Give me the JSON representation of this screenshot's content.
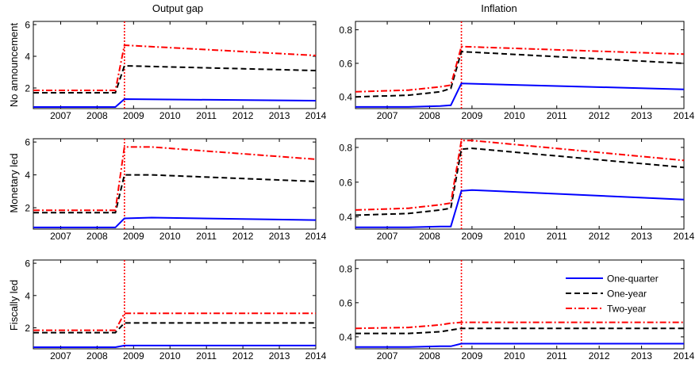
{
  "figure": {
    "column_titles": [
      "Output gap",
      "Inflation"
    ],
    "row_labels": [
      "No announcement",
      "Monetary led",
      "Fiscally led"
    ]
  },
  "legend": {
    "entries": [
      "One-quarter",
      "One-year",
      "Two-year"
    ]
  },
  "colors": {
    "one_quarter": "#0000ff",
    "one_year": "#000000",
    "two_year": "#ff0000",
    "event_line": "#ff0000"
  },
  "chart_data": [
    {
      "type": "line",
      "row": "No announcement",
      "column": "Output gap",
      "x": [
        2006.25,
        2008.5,
        2008.75,
        2014.0
      ],
      "xlim": [
        2006.25,
        2014.0
      ],
      "xticks": [
        2007,
        2008,
        2009,
        2010,
        2011,
        2012,
        2013,
        2014
      ],
      "ylim": [
        0.7,
        6.2
      ],
      "yticks": [
        2,
        4,
        6
      ],
      "event_x": 2008.75,
      "series": [
        {
          "name": "One-quarter",
          "values": [
            0.8,
            0.8,
            1.3,
            1.2
          ]
        },
        {
          "name": "One-year",
          "values": [
            1.7,
            1.7,
            3.4,
            3.1
          ]
        },
        {
          "name": "Two-year",
          "values": [
            1.85,
            1.85,
            4.7,
            4.05
          ]
        }
      ]
    },
    {
      "type": "line",
      "row": "No announcement",
      "column": "Inflation",
      "x": [
        2006.25,
        2007.5,
        2008.25,
        2008.5,
        2008.75,
        2014.0
      ],
      "xlim": [
        2006.25,
        2014.0
      ],
      "xticks": [
        2007,
        2008,
        2009,
        2010,
        2011,
        2012,
        2013,
        2014
      ],
      "ylim": [
        0.33,
        0.85
      ],
      "yticks": [
        0.4,
        0.6,
        0.8
      ],
      "event_x": 2008.75,
      "series": [
        {
          "name": "One-quarter",
          "values": [
            0.34,
            0.34,
            0.345,
            0.35,
            0.48,
            0.445
          ]
        },
        {
          "name": "One-year",
          "values": [
            0.4,
            0.41,
            0.43,
            0.45,
            0.67,
            0.6
          ]
        },
        {
          "name": "Two-year",
          "values": [
            0.43,
            0.44,
            0.46,
            0.47,
            0.7,
            0.655
          ]
        }
      ]
    },
    {
      "type": "line",
      "row": "Monetary led",
      "column": "Output gap",
      "x": [
        2006.25,
        2008.5,
        2008.75,
        2009.5,
        2014.0
      ],
      "xlim": [
        2006.25,
        2014.0
      ],
      "xticks": [
        2007,
        2008,
        2009,
        2010,
        2011,
        2012,
        2013,
        2014
      ],
      "ylim": [
        0.7,
        6.2
      ],
      "yticks": [
        2,
        4,
        6
      ],
      "event_x": 2008.75,
      "series": [
        {
          "name": "One-quarter",
          "values": [
            0.8,
            0.8,
            1.35,
            1.4,
            1.25
          ]
        },
        {
          "name": "One-year",
          "values": [
            1.7,
            1.7,
            4.0,
            4.0,
            3.6
          ]
        },
        {
          "name": "Two-year",
          "values": [
            1.85,
            1.85,
            5.7,
            5.7,
            4.95
          ]
        }
      ]
    },
    {
      "type": "line",
      "row": "Monetary led",
      "column": "Inflation",
      "x": [
        2006.25,
        2007.5,
        2008.25,
        2008.5,
        2008.75,
        2009.0,
        2014.0
      ],
      "xlim": [
        2006.25,
        2014.0
      ],
      "xticks": [
        2007,
        2008,
        2009,
        2010,
        2011,
        2012,
        2013,
        2014
      ],
      "ylim": [
        0.33,
        0.85
      ],
      "yticks": [
        0.4,
        0.6,
        0.8
      ],
      "event_x": 2008.75,
      "series": [
        {
          "name": "One-quarter",
          "values": [
            0.34,
            0.34,
            0.345,
            0.345,
            0.55,
            0.555,
            0.5
          ]
        },
        {
          "name": "One-year",
          "values": [
            0.41,
            0.42,
            0.44,
            0.45,
            0.79,
            0.795,
            0.685
          ]
        },
        {
          "name": "Two-year",
          "values": [
            0.44,
            0.45,
            0.47,
            0.48,
            0.84,
            0.84,
            0.725
          ]
        }
      ]
    },
    {
      "type": "line",
      "row": "Fiscally led",
      "column": "Output gap",
      "x": [
        2006.25,
        2008.5,
        2008.75,
        2014.0
      ],
      "xlim": [
        2006.25,
        2014.0
      ],
      "xticks": [
        2007,
        2008,
        2009,
        2010,
        2011,
        2012,
        2013,
        2014
      ],
      "ylim": [
        0.7,
        6.2
      ],
      "yticks": [
        2,
        4,
        6
      ],
      "event_x": 2008.75,
      "series": [
        {
          "name": "One-quarter",
          "values": [
            0.8,
            0.8,
            0.9,
            0.9
          ]
        },
        {
          "name": "One-year",
          "values": [
            1.7,
            1.7,
            2.3,
            2.3
          ]
        },
        {
          "name": "Two-year",
          "values": [
            1.85,
            1.85,
            2.9,
            2.9
          ]
        }
      ]
    },
    {
      "type": "line",
      "row": "Fiscally led",
      "column": "Inflation",
      "x": [
        2006.25,
        2007.5,
        2008.25,
        2008.5,
        2008.75,
        2014.0
      ],
      "xlim": [
        2006.25,
        2014.0
      ],
      "xticks": [
        2007,
        2008,
        2009,
        2010,
        2011,
        2012,
        2013,
        2014
      ],
      "ylim": [
        0.33,
        0.85
      ],
      "yticks": [
        0.4,
        0.6,
        0.8
      ],
      "event_x": 2008.75,
      "series": [
        {
          "name": "One-quarter",
          "values": [
            0.34,
            0.34,
            0.345,
            0.345,
            0.36,
            0.36
          ]
        },
        {
          "name": "One-year",
          "values": [
            0.42,
            0.42,
            0.43,
            0.44,
            0.45,
            0.45
          ]
        },
        {
          "name": "Two-year",
          "values": [
            0.45,
            0.455,
            0.47,
            0.48,
            0.485,
            0.485
          ]
        }
      ]
    }
  ]
}
